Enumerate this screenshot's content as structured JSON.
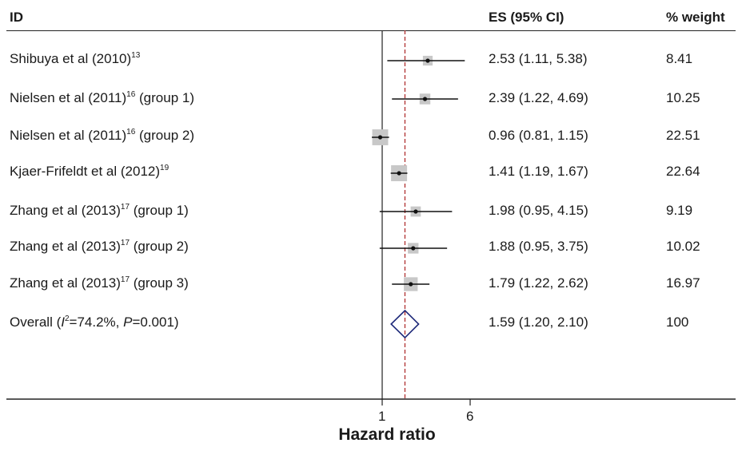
{
  "header": {
    "id_label": "ID",
    "es_label": "ES (95% CI)",
    "weight_label": "% weight"
  },
  "rows": [
    {
      "label_pre": "Shibuya et al (2010)",
      "sup": "13",
      "label_post": "",
      "es_text": "2.53 (1.11, 5.38)",
      "weight_text": "8.41"
    },
    {
      "label_pre": "Nielsen et al (2011)",
      "sup": "16",
      "label_post": " (group 1)",
      "es_text": "2.39 (1.22, 4.69)",
      "weight_text": "10.25"
    },
    {
      "label_pre": "Nielsen et al (2011)",
      "sup": "16",
      "label_post": " (group 2)",
      "es_text": "0.96 (0.81, 1.15)",
      "weight_text": "22.51"
    },
    {
      "label_pre": "Kjaer-Frifeldt et al (2012)",
      "sup": "19",
      "label_post": "",
      "es_text": "1.41 (1.19, 1.67)",
      "weight_text": "22.64"
    },
    {
      "label_pre": "Zhang et al (2013)",
      "sup": "17",
      "label_post": " (group 1)",
      "es_text": "1.98 (0.95, 4.15)",
      "weight_text": "9.19"
    },
    {
      "label_pre": "Zhang et al (2013)",
      "sup": "17",
      "label_post": " (group 2)",
      "es_text": "1.88 (0.95, 3.75)",
      "weight_text": "10.02"
    },
    {
      "label_pre": "Zhang et al  (2013)",
      "sup": "17",
      "label_post": " (group 3)",
      "es_text": "1.79 (1.22, 2.62)",
      "weight_text": "16.97"
    }
  ],
  "overall": {
    "label_pre": "Overall (",
    "i2_symbol": "I",
    "i2_sup": "2",
    "label_mid": "=74.2%, ",
    "p_symbol": "P",
    "label_post": "=0.001)",
    "es_text": "1.59 (1.20, 2.10)",
    "weight_text": "100"
  },
  "xaxis": {
    "label": "Hazard ratio",
    "tick_labels": [
      "1",
      "6"
    ]
  },
  "colors": {
    "diamond": "#1f2a7a",
    "reference_line": "#b03030",
    "ci_line": "#111111",
    "weight_box": "#c8c8c8"
  },
  "chart_data": {
    "type": "forest",
    "xlabel": "Hazard ratio",
    "xscale": "log",
    "xticks": [
      1,
      6
    ],
    "reference_line": 1,
    "overall_line": 1.59,
    "studies": [
      {
        "study": "Shibuya et al (2010)",
        "es": 2.53,
        "lo": 1.11,
        "hi": 5.38,
        "weight": 8.41
      },
      {
        "study": "Nielsen et al (2011) (group 1)",
        "es": 2.39,
        "lo": 1.22,
        "hi": 4.69,
        "weight": 10.25
      },
      {
        "study": "Nielsen et al (2011) (group 2)",
        "es": 0.96,
        "lo": 0.81,
        "hi": 1.15,
        "weight": 22.51
      },
      {
        "study": "Kjaer-Frifeldt et al (2012)",
        "es": 1.41,
        "lo": 1.19,
        "hi": 1.67,
        "weight": 22.64
      },
      {
        "study": "Zhang et al (2013) (group 1)",
        "es": 1.98,
        "lo": 0.95,
        "hi": 4.15,
        "weight": 9.19
      },
      {
        "study": "Zhang et al (2013) (group 2)",
        "es": 1.88,
        "lo": 0.95,
        "hi": 3.75,
        "weight": 10.02
      },
      {
        "study": "Zhang et al (2013) (group 3)",
        "es": 1.79,
        "lo": 1.22,
        "hi": 2.62,
        "weight": 16.97
      }
    ],
    "overall": {
      "es": 1.59,
      "lo": 1.2,
      "hi": 2.1,
      "weight": 100
    }
  }
}
